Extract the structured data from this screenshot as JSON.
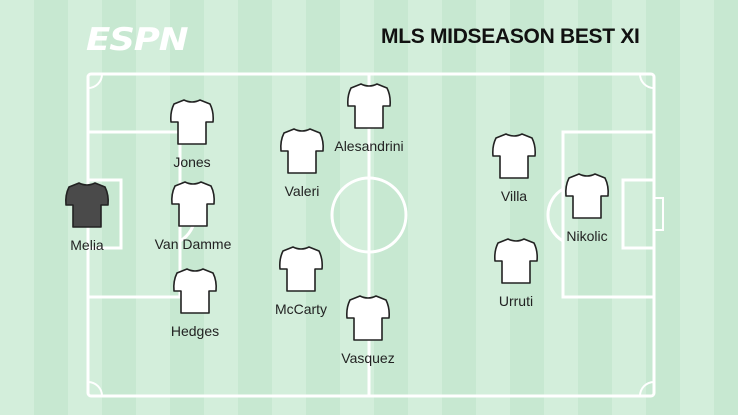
{
  "logo": "ESPN",
  "title": "MLS MIDSEASON BEST XI",
  "colors": {
    "outfield_shirt": "#ffffff",
    "goalkeeper_shirt": "#4a4a4a",
    "pitch": "#d3eedb",
    "lines": "#ffffff"
  },
  "players": [
    {
      "name": "Melia",
      "role": "goalkeeper"
    },
    {
      "name": "Jones"
    },
    {
      "name": "Van Damme"
    },
    {
      "name": "Hedges"
    },
    {
      "name": "Alesandrini"
    },
    {
      "name": "Valeri"
    },
    {
      "name": "McCarty"
    },
    {
      "name": "Vasquez"
    },
    {
      "name": "Villa"
    },
    {
      "name": "Nikolic"
    },
    {
      "name": "Urruti"
    }
  ]
}
